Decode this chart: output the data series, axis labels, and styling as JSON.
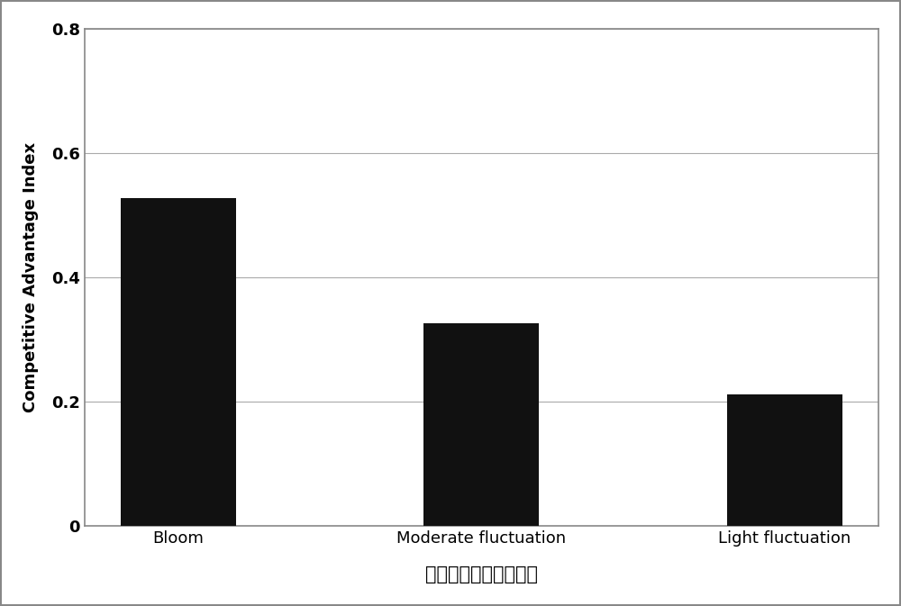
{
  "categories": [
    "Bloom",
    "Moderate fluctuation",
    "Light fluctuation"
  ],
  "values": [
    0.527,
    0.327,
    0.212
  ],
  "bar_color": "#111111",
  "bar_width": 0.38,
  "ylabel": "Competitive Advantage Index",
  "xlabel": "渔业资源风险影响级别",
  "ylim": [
    0,
    0.8
  ],
  "yticks": [
    0,
    0.2,
    0.4,
    0.6,
    0.8
  ],
  "ytick_labels": [
    "0",
    "0.2",
    "0.4",
    "0.6",
    "0.8"
  ],
  "background_color": "#ffffff",
  "ylabel_fontsize": 13,
  "xlabel_fontsize": 15,
  "tick_fontsize": 13,
  "grid_color": "#aaaaaa",
  "border_color": "#888888"
}
